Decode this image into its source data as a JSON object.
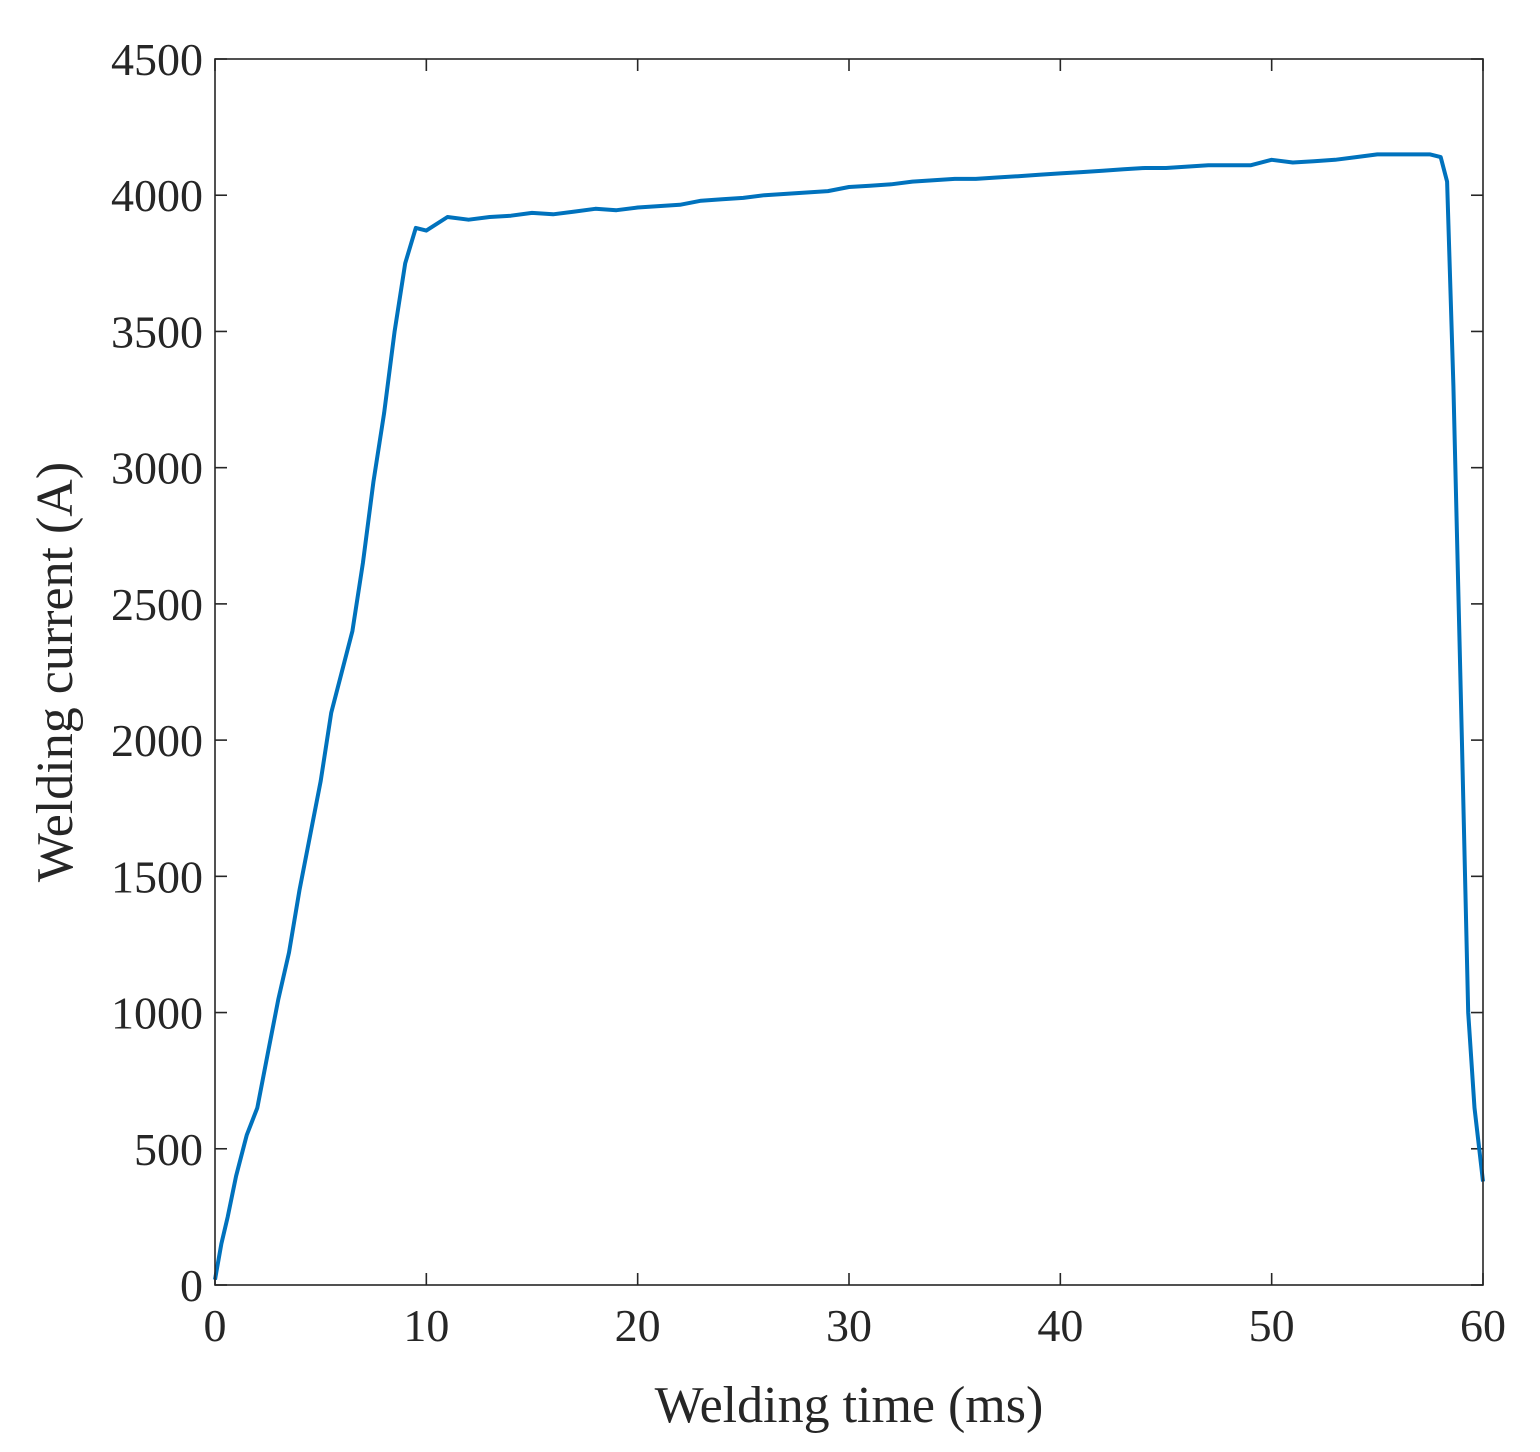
{
  "chart_data": {
    "type": "line",
    "title": "",
    "xlabel": "Welding time (ms)",
    "ylabel": "Welding current (A)",
    "xlim": [
      0,
      60
    ],
    "ylim": [
      0,
      4500
    ],
    "xticks": [
      0,
      10,
      20,
      30,
      40,
      50,
      60
    ],
    "yticks": [
      0,
      500,
      1000,
      1500,
      2000,
      2500,
      3000,
      3500,
      4000,
      4500
    ],
    "x_tick_labels": [
      "0",
      "10",
      "20",
      "30",
      "40",
      "50",
      "60"
    ],
    "y_tick_labels": [
      "0",
      "500",
      "1000",
      "1500",
      "2000",
      "2500",
      "3000",
      "3500",
      "4000",
      "4500"
    ],
    "grid": false,
    "box": true,
    "line_color": "#0072BD",
    "series": [
      {
        "x": [
          0,
          0.3,
          0.6,
          1.0,
          1.5,
          2.0,
          2.5,
          3.0,
          3.5,
          4.0,
          4.5,
          5.0,
          5.5,
          6.0,
          6.5,
          7.0,
          7.5,
          8.0,
          8.5,
          9.0,
          9.5,
          10.0,
          11,
          12,
          13,
          14,
          15,
          16,
          17,
          18,
          19,
          20,
          21,
          22,
          23,
          24,
          25,
          26,
          27,
          28,
          29,
          30,
          31,
          32,
          33,
          34,
          35,
          36,
          37,
          38,
          39,
          40,
          41,
          42,
          43,
          44,
          45,
          46,
          47,
          48,
          49,
          50,
          51,
          52,
          53,
          54,
          55,
          56,
          57,
          57.5,
          58,
          58.3,
          58.6,
          59.0,
          59.3,
          59.6,
          60.0
        ],
        "y": [
          20,
          150,
          250,
          400,
          550,
          650,
          850,
          1050,
          1220,
          1450,
          1650,
          1850,
          2100,
          2250,
          2400,
          2650,
          2950,
          3200,
          3500,
          3750,
          3880,
          3870,
          3920,
          3910,
          3920,
          3925,
          3935,
          3930,
          3940,
          3950,
          3945,
          3955,
          3960,
          3965,
          3980,
          3985,
          3990,
          4000,
          4005,
          4010,
          4015,
          4030,
          4035,
          4040,
          4050,
          4055,
          4060,
          4060,
          4065,
          4070,
          4075,
          4080,
          4085,
          4090,
          4095,
          4100,
          4100,
          4105,
          4110,
          4110,
          4110,
          4130,
          4120,
          4125,
          4130,
          4140,
          4150,
          4150,
          4150,
          4150,
          4140,
          4050,
          3300,
          2000,
          1000,
          650,
          380
        ]
      }
    ]
  }
}
